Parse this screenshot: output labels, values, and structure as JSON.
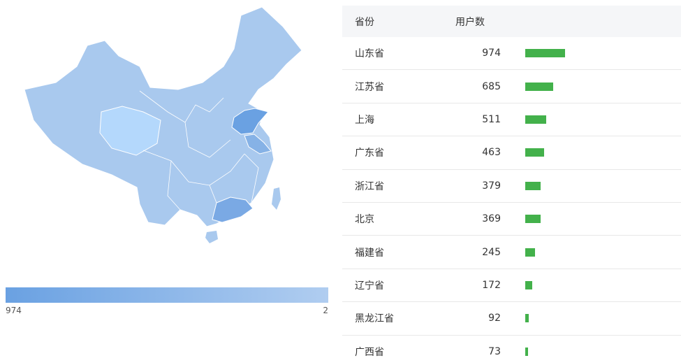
{
  "map": {
    "legend": {
      "max": "974",
      "min": "2"
    }
  },
  "table": {
    "headers": [
      "省份",
      "用户数"
    ],
    "rows": [
      [
        "山东省",
        974
      ],
      [
        "江苏省",
        685
      ],
      [
        "上海",
        511
      ],
      [
        "广东省",
        463
      ],
      [
        "浙江省",
        379
      ],
      [
        "北京",
        369
      ],
      [
        "福建省",
        245
      ],
      [
        "辽宁省",
        172
      ],
      [
        "黑龙江省",
        92
      ],
      [
        "广西省",
        73
      ]
    ]
  }
}
